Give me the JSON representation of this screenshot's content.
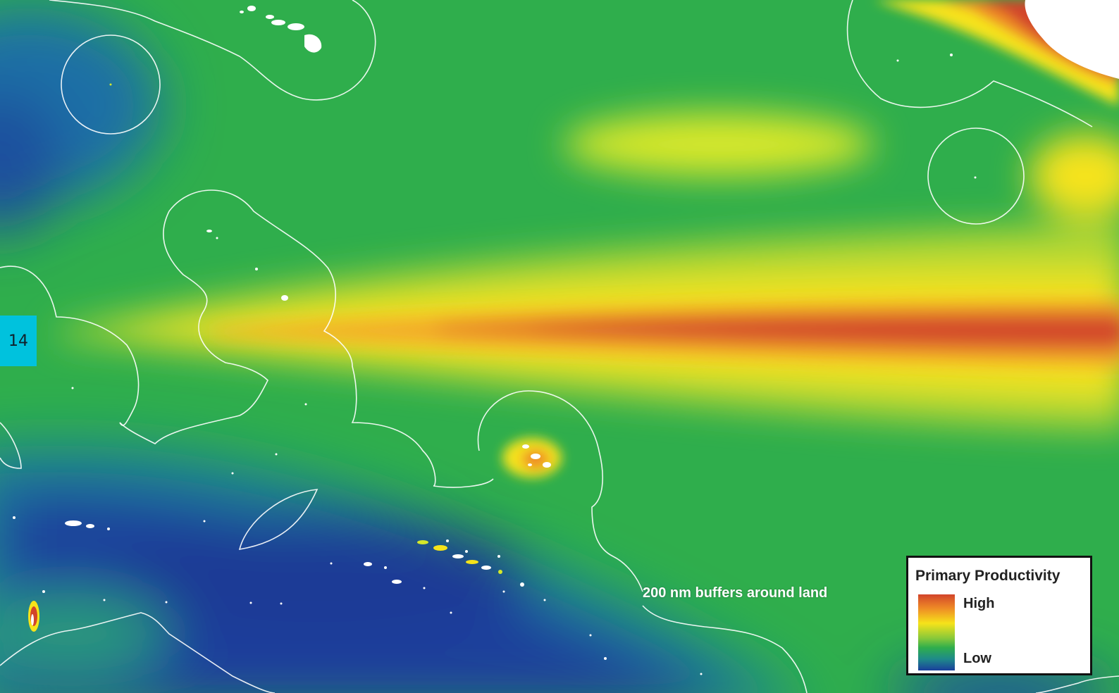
{
  "page": {
    "number": "14"
  },
  "map": {
    "buffer_label": "200 nm buffers around land",
    "colors": {
      "high": "#d2452a",
      "orange": "#ee8a26",
      "yellow": "#f6e31a",
      "green": "#2fae4c",
      "teal": "#1f8a8a",
      "low": "#1a3f9c",
      "land": "#ffffff",
      "buffer_line": "#ffffff"
    }
  },
  "legend": {
    "title": "Primary Productivity",
    "high_label": "High",
    "low_label": "Low"
  }
}
